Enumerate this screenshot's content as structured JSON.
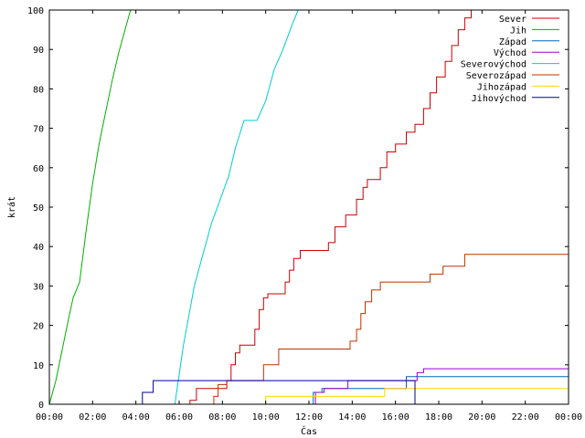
{
  "chart_data": {
    "type": "line",
    "xlabel": "Čas",
    "ylabel": "krát",
    "xlim": [
      0,
      24
    ],
    "ylim": [
      0,
      100
    ],
    "x_ticks": [
      {
        "value": 0,
        "label": "00:00"
      },
      {
        "value": 2,
        "label": "02:00"
      },
      {
        "value": 4,
        "label": "04:00"
      },
      {
        "value": 6,
        "label": "06:00"
      },
      {
        "value": 8,
        "label": "08:00"
      },
      {
        "value": 10,
        "label": "10:00"
      },
      {
        "value": 12,
        "label": "12:00"
      },
      {
        "value": 14,
        "label": "14:00"
      },
      {
        "value": 16,
        "label": "16:00"
      },
      {
        "value": 18,
        "label": "18:00"
      },
      {
        "value": 20,
        "label": "20:00"
      },
      {
        "value": 22,
        "label": "22:00"
      },
      {
        "value": 24,
        "label": "00:00"
      }
    ],
    "y_ticks": [
      0,
      10,
      20,
      30,
      40,
      50,
      60,
      70,
      80,
      90,
      100
    ],
    "grid": false,
    "legend_position": "top-right",
    "series": [
      {
        "name": "Sever",
        "color": "#cc0000",
        "points": [
          [
            6.5,
            0
          ],
          [
            6.5,
            1
          ],
          [
            6.8,
            1
          ],
          [
            6.8,
            4
          ],
          [
            8.2,
            4
          ],
          [
            8.2,
            6
          ],
          [
            8.4,
            6
          ],
          [
            8.4,
            10
          ],
          [
            8.6,
            10
          ],
          [
            8.6,
            13
          ],
          [
            8.8,
            13
          ],
          [
            8.8,
            15
          ],
          [
            9.5,
            15
          ],
          [
            9.5,
            19
          ],
          [
            9.7,
            19
          ],
          [
            9.7,
            24
          ],
          [
            9.9,
            24
          ],
          [
            9.9,
            27
          ],
          [
            10.1,
            27
          ],
          [
            10.1,
            28
          ],
          [
            10.9,
            28
          ],
          [
            10.9,
            31
          ],
          [
            11.1,
            31
          ],
          [
            11.1,
            34
          ],
          [
            11.3,
            34
          ],
          [
            11.3,
            37
          ],
          [
            11.6,
            37
          ],
          [
            11.6,
            39
          ],
          [
            12.9,
            39
          ],
          [
            12.9,
            41
          ],
          [
            13.2,
            41
          ],
          [
            13.2,
            45
          ],
          [
            13.7,
            45
          ],
          [
            13.7,
            48
          ],
          [
            14.2,
            48
          ],
          [
            14.2,
            52
          ],
          [
            14.5,
            52
          ],
          [
            14.5,
            55
          ],
          [
            14.7,
            55
          ],
          [
            14.7,
            57
          ],
          [
            15.3,
            57
          ],
          [
            15.3,
            60
          ],
          [
            15.6,
            60
          ],
          [
            15.6,
            64
          ],
          [
            16.0,
            64
          ],
          [
            16.0,
            66
          ],
          [
            16.5,
            66
          ],
          [
            16.5,
            69
          ],
          [
            16.9,
            69
          ],
          [
            16.9,
            71
          ],
          [
            17.3,
            71
          ],
          [
            17.3,
            75
          ],
          [
            17.6,
            75
          ],
          [
            17.6,
            79
          ],
          [
            17.9,
            79
          ],
          [
            17.9,
            83
          ],
          [
            18.3,
            83
          ],
          [
            18.3,
            87
          ],
          [
            18.6,
            87
          ],
          [
            18.6,
            91
          ],
          [
            18.9,
            91
          ],
          [
            18.9,
            95
          ],
          [
            19.2,
            95
          ],
          [
            19.2,
            98
          ],
          [
            19.5,
            98
          ],
          [
            19.5,
            100
          ]
        ]
      },
      {
        "name": "Jih",
        "color": "#00b000",
        "points": [
          [
            0,
            0
          ],
          [
            0.3,
            6
          ],
          [
            0.6,
            14
          ],
          [
            0.9,
            22
          ],
          [
            1.1,
            27
          ],
          [
            1.4,
            31
          ],
          [
            1.7,
            44
          ],
          [
            2.0,
            56
          ],
          [
            2.3,
            66
          ],
          [
            2.6,
            74
          ],
          [
            2.9,
            82
          ],
          [
            3.2,
            89
          ],
          [
            3.5,
            95
          ],
          [
            3.75,
            100
          ]
        ]
      },
      {
        "name": "Západ",
        "color": "#0066bb",
        "points": [
          [
            12.2,
            0
          ],
          [
            12.2,
            3
          ],
          [
            12.6,
            3
          ],
          [
            12.6,
            4
          ],
          [
            16.5,
            4
          ],
          [
            16.5,
            7
          ],
          [
            24,
            7
          ]
        ]
      },
      {
        "name": "Východ",
        "color": "#9900cc",
        "points": [
          [
            12.3,
            0
          ],
          [
            12.3,
            3
          ],
          [
            12.7,
            3
          ],
          [
            12.7,
            4
          ],
          [
            13.8,
            4
          ],
          [
            13.8,
            6
          ],
          [
            17.0,
            6
          ],
          [
            17.0,
            8
          ],
          [
            17.3,
            8
          ],
          [
            17.3,
            9
          ],
          [
            24,
            9
          ]
        ]
      },
      {
        "name": "Severovýchod",
        "color": "#00cccc",
        "points": [
          [
            5.8,
            0
          ],
          [
            6.2,
            15
          ],
          [
            6.7,
            30
          ],
          [
            7.1,
            38
          ],
          [
            7.5,
            46
          ],
          [
            7.9,
            52
          ],
          [
            8.3,
            58
          ],
          [
            8.6,
            65
          ],
          [
            9.0,
            72
          ],
          [
            9.6,
            72
          ],
          [
            10.0,
            77
          ],
          [
            10.4,
            85
          ],
          [
            10.8,
            90
          ],
          [
            11.2,
            96
          ],
          [
            11.5,
            100
          ]
        ]
      },
      {
        "name": "Severozápad",
        "color": "#bb3300",
        "points": [
          [
            7.6,
            0
          ],
          [
            7.6,
            2
          ],
          [
            7.8,
            2
          ],
          [
            7.8,
            5
          ],
          [
            8.2,
            5
          ],
          [
            8.2,
            6
          ],
          [
            9.9,
            6
          ],
          [
            9.9,
            10
          ],
          [
            10.6,
            10
          ],
          [
            10.6,
            14
          ],
          [
            13.9,
            14
          ],
          [
            13.9,
            16
          ],
          [
            14.2,
            16
          ],
          [
            14.2,
            19
          ],
          [
            14.4,
            19
          ],
          [
            14.4,
            23
          ],
          [
            14.6,
            23
          ],
          [
            14.6,
            26
          ],
          [
            14.9,
            26
          ],
          [
            14.9,
            29
          ],
          [
            15.3,
            29
          ],
          [
            15.3,
            31
          ],
          [
            17.6,
            31
          ],
          [
            17.6,
            33
          ],
          [
            18.2,
            33
          ],
          [
            18.2,
            35
          ],
          [
            19.2,
            35
          ],
          [
            19.2,
            38
          ],
          [
            24,
            38
          ]
        ]
      },
      {
        "name": "Jihozápad",
        "color": "#ffd700",
        "points": [
          [
            10.0,
            0
          ],
          [
            10.0,
            2
          ],
          [
            10.7,
            2
          ],
          [
            10.7,
            2
          ],
          [
            12.2,
            2
          ],
          [
            12.2,
            2
          ],
          [
            15.5,
            2
          ],
          [
            15.5,
            4
          ],
          [
            24,
            4
          ]
        ]
      },
      {
        "name": "Jihovýchod",
        "color": "#000099",
        "points": [
          [
            4.3,
            0
          ],
          [
            4.3,
            3
          ],
          [
            4.8,
            3
          ],
          [
            4.8,
            6
          ],
          [
            16.9,
            6
          ],
          [
            16.9,
            0
          ]
        ]
      }
    ]
  }
}
